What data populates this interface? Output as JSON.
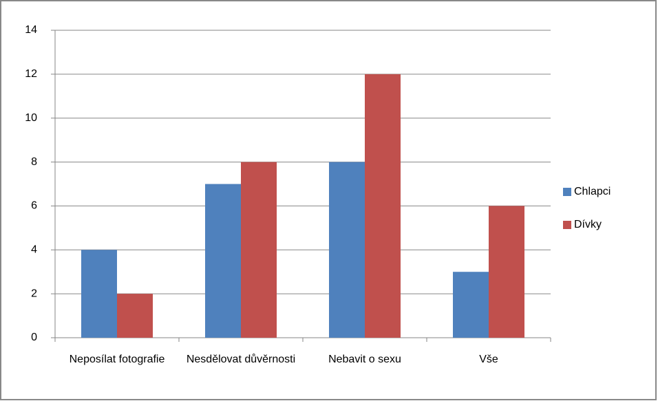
{
  "chart_data": {
    "type": "bar",
    "categories": [
      "Neposílat fotografie",
      "Nesdělovat důvěrnosti",
      "Nebavit o sexu",
      "Vše"
    ],
    "series": [
      {
        "name": "Chlapci",
        "color": "#4f81bd",
        "values": [
          4,
          7,
          8,
          3
        ]
      },
      {
        "name": "Dívky",
        "color": "#c0504d",
        "values": [
          2,
          8,
          12,
          6
        ]
      }
    ],
    "ylim": [
      0,
      14
    ],
    "yticks": [
      0,
      2,
      4,
      6,
      8,
      10,
      12,
      14
    ],
    "grid": true,
    "legend": "right"
  }
}
